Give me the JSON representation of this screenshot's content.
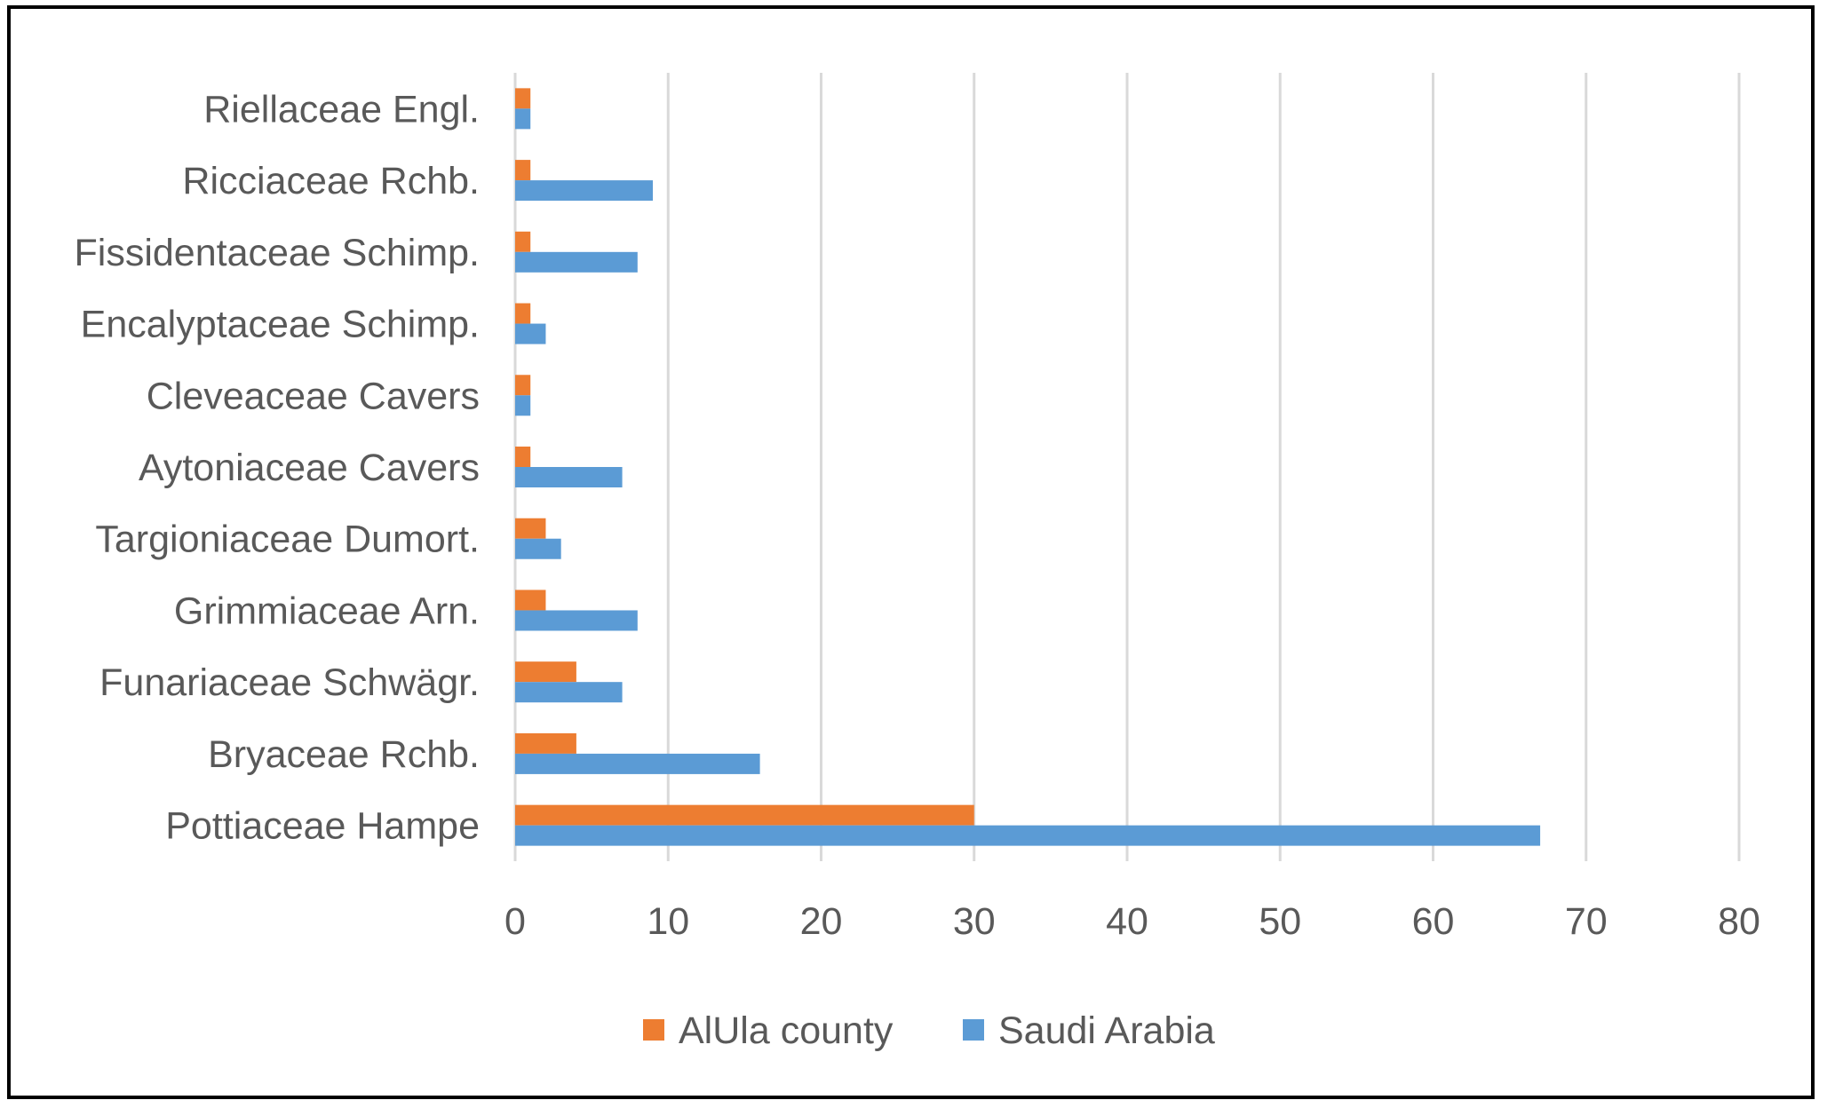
{
  "chart_data": {
    "type": "bar",
    "orientation": "horizontal",
    "categories": [
      "Pottiaceae Hampe",
      "Bryaceae Rchb.",
      "Funariaceae Schwägr.",
      "Grimmiaceae Arn.",
      "Targioniaceae Dumort.",
      "Aytoniaceae Cavers",
      "Cleveaceae Cavers",
      "Encalyptaceae Schimp.",
      "Fissidentaceae Schimp.",
      "Ricciaceae Rchb.",
      "Riellaceae Engl."
    ],
    "series": [
      {
        "name": "AlUla county",
        "color": "#ed7d31",
        "values": [
          30,
          4,
          4,
          2,
          2,
          1,
          1,
          1,
          1,
          1,
          1
        ]
      },
      {
        "name": "Saudi Arabia",
        "color": "#5b9bd5",
        "values": [
          67,
          16,
          7,
          8,
          3,
          7,
          1,
          2,
          8,
          9,
          1
        ]
      }
    ],
    "title": "",
    "xlabel": "",
    "ylabel": "",
    "xlim": [
      0,
      80
    ],
    "xticks": [
      "0",
      "10",
      "20",
      "30",
      "40",
      "50",
      "60",
      "70",
      "80"
    ],
    "grid": true,
    "legend_position": "bottom"
  }
}
